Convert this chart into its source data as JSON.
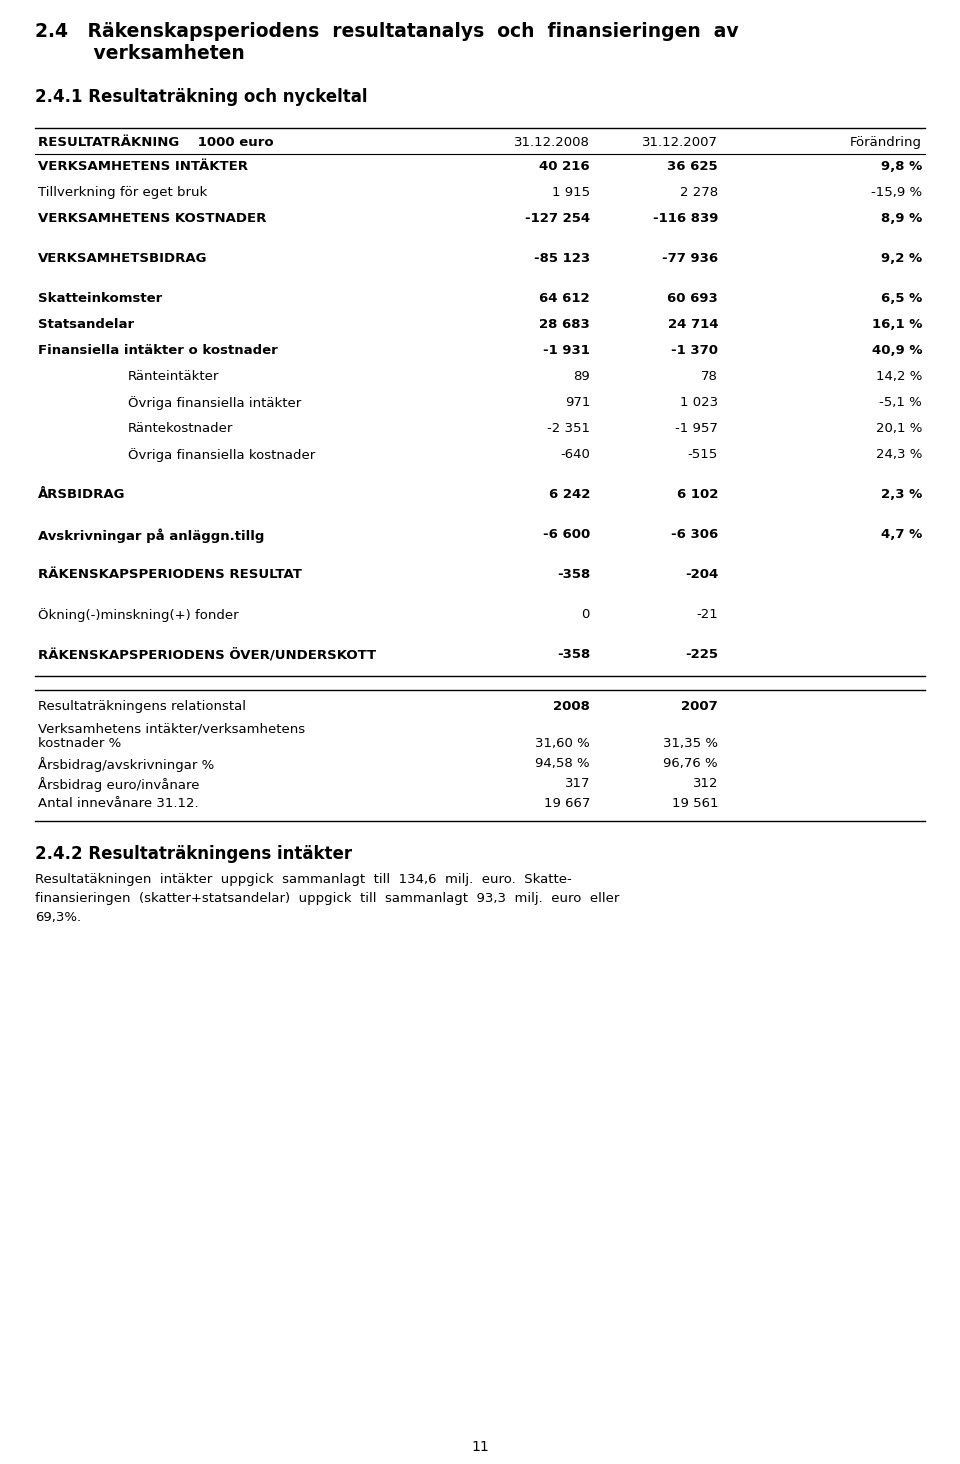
{
  "page_bg": "#ffffff",
  "rows": [
    {
      "label": "VERKSAMHETENS INTÄKTER",
      "v2008": "40 216",
      "v2007": "36 625",
      "change": "9,8 %",
      "bold": true,
      "indent": 0,
      "spacer": false
    },
    {
      "label": "Tillverkning för eget bruk",
      "v2008": "1 915",
      "v2007": "2 278",
      "change": "-15,9 %",
      "bold": false,
      "indent": 0,
      "spacer": false
    },
    {
      "label": "VERKSAMHETENS KOSTNADER",
      "v2008": "-127 254",
      "v2007": "-116 839",
      "change": "8,9 %",
      "bold": true,
      "indent": 0,
      "spacer": false
    },
    {
      "label": "",
      "v2008": "",
      "v2007": "",
      "change": "",
      "bold": false,
      "indent": 0,
      "spacer": true
    },
    {
      "label": "VERKSAMHETSBIDRAG",
      "v2008": "-85 123",
      "v2007": "-77 936",
      "change": "9,2 %",
      "bold": true,
      "indent": 0,
      "spacer": false
    },
    {
      "label": "",
      "v2008": "",
      "v2007": "",
      "change": "",
      "bold": false,
      "indent": 0,
      "spacer": true
    },
    {
      "label": "Skatteinkomster",
      "v2008": "64 612",
      "v2007": "60 693",
      "change": "6,5 %",
      "bold": true,
      "indent": 0,
      "spacer": false
    },
    {
      "label": "Statsandelar",
      "v2008": "28 683",
      "v2007": "24 714",
      "change": "16,1 %",
      "bold": true,
      "indent": 0,
      "spacer": false
    },
    {
      "label": "Finansiella intäkter o kostnader",
      "v2008": "-1 931",
      "v2007": "-1 370",
      "change": "40,9 %",
      "bold": true,
      "indent": 0,
      "spacer": false
    },
    {
      "label": "Ränteintäkter",
      "v2008": "89",
      "v2007": "78",
      "change": "14,2 %",
      "bold": false,
      "indent": 1,
      "spacer": false
    },
    {
      "label": "Övriga finansiella intäkter",
      "v2008": "971",
      "v2007": "1 023",
      "change": "-5,1 %",
      "bold": false,
      "indent": 1,
      "spacer": false
    },
    {
      "label": "Räntekostnader",
      "v2008": "-2 351",
      "v2007": "-1 957",
      "change": "20,1 %",
      "bold": false,
      "indent": 1,
      "spacer": false
    },
    {
      "label": "Övriga finansiella kostnader",
      "v2008": "-640",
      "v2007": "-515",
      "change": "24,3 %",
      "bold": false,
      "indent": 1,
      "spacer": false
    },
    {
      "label": "",
      "v2008": "",
      "v2007": "",
      "change": "",
      "bold": false,
      "indent": 0,
      "spacer": true
    },
    {
      "label": "ÅRSBIDRAG",
      "v2008": "6 242",
      "v2007": "6 102",
      "change": "2,3 %",
      "bold": true,
      "indent": 0,
      "spacer": false
    },
    {
      "label": "",
      "v2008": "",
      "v2007": "",
      "change": "",
      "bold": false,
      "indent": 0,
      "spacer": true
    },
    {
      "label": "Avskrivningar på anläggn.tillg",
      "v2008": "-6 600",
      "v2007": "-6 306",
      "change": "4,7 %",
      "bold": true,
      "indent": 0,
      "spacer": false
    },
    {
      "label": "",
      "v2008": "",
      "v2007": "",
      "change": "",
      "bold": false,
      "indent": 0,
      "spacer": true
    },
    {
      "label": "RÄKENSKAPSPERIODENS RESULTAT",
      "v2008": "-358",
      "v2007": "-204",
      "change": "",
      "bold": true,
      "indent": 0,
      "spacer": false
    },
    {
      "label": "",
      "v2008": "",
      "v2007": "",
      "change": "",
      "bold": false,
      "indent": 0,
      "spacer": true
    },
    {
      "label": "Ökning(-)minskning(+) fonder",
      "v2008": "0",
      "v2007": "-21",
      "change": "",
      "bold": false,
      "indent": 0,
      "spacer": false
    },
    {
      "label": "",
      "v2008": "",
      "v2007": "",
      "change": "",
      "bold": false,
      "indent": 0,
      "spacer": true
    },
    {
      "label": "RÄKENSKAPSPERIODENS ÖVER/UNDERSKOTT",
      "v2008": "-358",
      "v2007": "-225",
      "change": "",
      "bold": true,
      "indent": 0,
      "spacer": false
    }
  ],
  "rel_rows": [
    {
      "label": "Verksamhetens intäkter/verksamhetens",
      "label2": "kostnader %",
      "v2008": "31,60 %",
      "v2007": "31,35 %",
      "two_line": true
    },
    {
      "label": "Årsbidrag/avskrivningar %",
      "label2": "",
      "v2008": "94,58 %",
      "v2007": "96,76 %",
      "two_line": false
    },
    {
      "label": "Årsbidrag euro/invånare",
      "label2": "",
      "v2008": "317",
      "v2007": "312",
      "two_line": false
    },
    {
      "label": "Antal innevånare 31.12.",
      "label2": "",
      "v2008": "19 667",
      "v2007": "19 561",
      "two_line": false
    }
  ],
  "body_lines": [
    "Resultatäkningen  intäkter  uppgick  sammanlagt  till  134,6  milj.  euro.  Skatte-",
    "finansieringen  (skatter+statsandelar)  uppgick  till  sammanlagt  93,3  milj.  euro  eller",
    "69,3%."
  ]
}
